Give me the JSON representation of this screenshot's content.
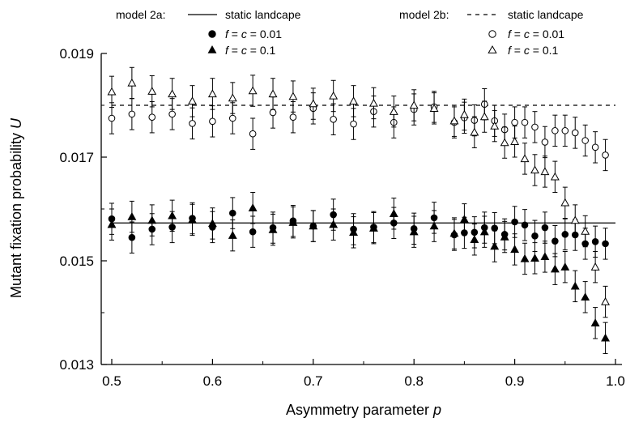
{
  "chart_data": {
    "type": "scatter",
    "xlabel": "Asymmetry parameter p",
    "ylabel": "Mutant fixation probability U",
    "xlim": [
      0.5,
      1.0
    ],
    "ylim": [
      0.013,
      0.019
    ],
    "xticks": [
      "0.5",
      "0.6",
      "0.7",
      "0.8",
      "0.9",
      "1.0"
    ],
    "yticks": [
      "0.013",
      "0.015",
      "0.017",
      "0.019"
    ],
    "grid": false,
    "legend_position": "top",
    "legend": {
      "left": {
        "model": "model 2a:",
        "line_label": "static landcape",
        "circle_label": "f = c = 0.01",
        "triangle_label": "f = c = 0.1"
      },
      "right": {
        "model": "model 2b:",
        "line_label": "static landcape",
        "circle_label": "f = c = 0.01",
        "triangle_label": "f = c = 0.1"
      }
    },
    "reference_lines": [
      {
        "model": "model 2a",
        "style": "solid",
        "y": 0.01573
      },
      {
        "model": "model 2b",
        "style": "dashed",
        "y": 0.018
      }
    ],
    "series": [
      {
        "model": "model 2a",
        "marker": "circle",
        "filled": true,
        "fc": 0.01,
        "x": [
          0.5,
          0.52,
          0.54,
          0.56,
          0.58,
          0.6,
          0.62,
          0.64,
          0.66,
          0.68,
          0.7,
          0.72,
          0.74,
          0.76,
          0.78,
          0.8,
          0.82,
          0.84,
          0.85,
          0.86,
          0.87,
          0.88,
          0.89,
          0.9,
          0.91,
          0.92,
          0.93,
          0.94,
          0.95,
          0.96,
          0.97,
          0.98,
          0.99
        ],
        "y": [
          0.01581,
          0.01545,
          0.01561,
          0.01565,
          0.01582,
          0.01565,
          0.01592,
          0.01556,
          0.01564,
          0.01577,
          0.01567,
          0.01589,
          0.01561,
          0.01565,
          0.01573,
          0.01562,
          0.01583,
          0.0155,
          0.01554,
          0.01555,
          0.01564,
          0.01563,
          0.01551,
          0.01575,
          0.01569,
          0.01548,
          0.01564,
          0.01538,
          0.01551,
          0.0155,
          0.01533,
          0.01537,
          0.01533
        ],
        "err": [
          0.0003,
          0.0003,
          0.0003,
          0.0003,
          0.0003,
          0.0003,
          0.0003,
          0.0003,
          0.0003,
          0.0003,
          0.0003,
          0.0003,
          0.0003,
          0.0003,
          0.0003,
          0.0003,
          0.0003,
          0.0003,
          0.0003,
          0.0003,
          0.0003,
          0.0003,
          0.0003,
          0.0003,
          0.0003,
          0.0003,
          0.0003,
          0.0003,
          0.0003,
          0.0003,
          0.0003,
          0.0003,
          0.0003
        ]
      },
      {
        "model": "model 2a",
        "marker": "triangle",
        "filled": true,
        "fc": 0.1,
        "x": [
          0.5,
          0.52,
          0.54,
          0.56,
          0.58,
          0.6,
          0.62,
          0.64,
          0.66,
          0.68,
          0.7,
          0.72,
          0.74,
          0.76,
          0.78,
          0.8,
          0.82,
          0.84,
          0.85,
          0.86,
          0.87,
          0.88,
          0.89,
          0.9,
          0.91,
          0.92,
          0.93,
          0.94,
          0.95,
          0.96,
          0.97,
          0.98,
          0.99
        ],
        "y": [
          0.0157,
          0.01585,
          0.01578,
          0.01587,
          0.01579,
          0.01572,
          0.01549,
          0.01602,
          0.0156,
          0.01574,
          0.01567,
          0.0157,
          0.01555,
          0.01563,
          0.01591,
          0.01556,
          0.01567,
          0.01553,
          0.0158,
          0.01541,
          0.01556,
          0.01528,
          0.01546,
          0.01522,
          0.01504,
          0.01505,
          0.01508,
          0.01484,
          0.01488,
          0.01451,
          0.0143,
          0.0138,
          0.01351
        ],
        "err": [
          0.0003,
          0.0003,
          0.0003,
          0.0003,
          0.0003,
          0.0003,
          0.0003,
          0.0003,
          0.0003,
          0.0003,
          0.0003,
          0.0003,
          0.0003,
          0.0003,
          0.0003,
          0.0003,
          0.0003,
          0.0003,
          0.0003,
          0.0003,
          0.0003,
          0.0003,
          0.0003,
          0.0003,
          0.0003,
          0.0003,
          0.0003,
          0.0003,
          0.0003,
          0.0003,
          0.0003,
          0.0003,
          0.0003
        ]
      },
      {
        "model": "model 2b",
        "marker": "circle",
        "filled": false,
        "fc": 0.01,
        "x": [
          0.5,
          0.52,
          0.54,
          0.56,
          0.58,
          0.6,
          0.62,
          0.64,
          0.66,
          0.68,
          0.7,
          0.72,
          0.74,
          0.76,
          0.78,
          0.8,
          0.82,
          0.84,
          0.85,
          0.86,
          0.87,
          0.88,
          0.89,
          0.9,
          0.91,
          0.92,
          0.93,
          0.94,
          0.95,
          0.96,
          0.97,
          0.98,
          0.99
        ],
        "y": [
          0.01775,
          0.01783,
          0.01777,
          0.01783,
          0.01765,
          0.01769,
          0.01775,
          0.01745,
          0.01786,
          0.01777,
          0.01794,
          0.01773,
          0.01764,
          0.01788,
          0.01767,
          0.01792,
          0.01797,
          0.01767,
          0.01776,
          0.01771,
          0.01802,
          0.0177,
          0.01753,
          0.01767,
          0.01767,
          0.01758,
          0.01729,
          0.01751,
          0.01751,
          0.01747,
          0.01732,
          0.01719,
          0.01704
        ],
        "err": [
          0.0003,
          0.0003,
          0.0003,
          0.0003,
          0.0003,
          0.0003,
          0.0003,
          0.0003,
          0.0003,
          0.0003,
          0.0003,
          0.0003,
          0.0003,
          0.0003,
          0.0003,
          0.0003,
          0.0003,
          0.0003,
          0.0003,
          0.0003,
          0.0003,
          0.0003,
          0.0003,
          0.0003,
          0.0003,
          0.0003,
          0.0003,
          0.0003,
          0.0003,
          0.0003,
          0.0003,
          0.0003,
          0.0003
        ]
      },
      {
        "model": "model 2b",
        "marker": "triangle",
        "filled": false,
        "fc": 0.1,
        "x": [
          0.5,
          0.52,
          0.54,
          0.56,
          0.58,
          0.6,
          0.62,
          0.64,
          0.66,
          0.68,
          0.7,
          0.72,
          0.74,
          0.76,
          0.78,
          0.8,
          0.82,
          0.84,
          0.85,
          0.86,
          0.87,
          0.88,
          0.89,
          0.9,
          0.91,
          0.92,
          0.93,
          0.94,
          0.95,
          0.96,
          0.97,
          0.98,
          0.99
        ],
        "y": [
          0.01826,
          0.01843,
          0.01827,
          0.01822,
          0.01808,
          0.01822,
          0.01814,
          0.01828,
          0.01822,
          0.01817,
          0.01803,
          0.01818,
          0.01808,
          0.01804,
          0.01788,
          0.018,
          0.01794,
          0.0177,
          0.01782,
          0.01748,
          0.01778,
          0.0176,
          0.01728,
          0.0173,
          0.01697,
          0.01675,
          0.01672,
          0.01662,
          0.01612,
          0.01578,
          0.01557,
          0.01488,
          0.01421
        ],
        "err": [
          0.0003,
          0.0003,
          0.0003,
          0.0003,
          0.0003,
          0.0003,
          0.0003,
          0.0003,
          0.0003,
          0.0003,
          0.0003,
          0.0003,
          0.0003,
          0.0003,
          0.0003,
          0.0003,
          0.0003,
          0.0003,
          0.0003,
          0.0003,
          0.0003,
          0.0003,
          0.0003,
          0.0003,
          0.0003,
          0.0003,
          0.0003,
          0.0003,
          0.0003,
          0.0003,
          0.0003,
          0.0003,
          0.0003
        ]
      }
    ]
  }
}
